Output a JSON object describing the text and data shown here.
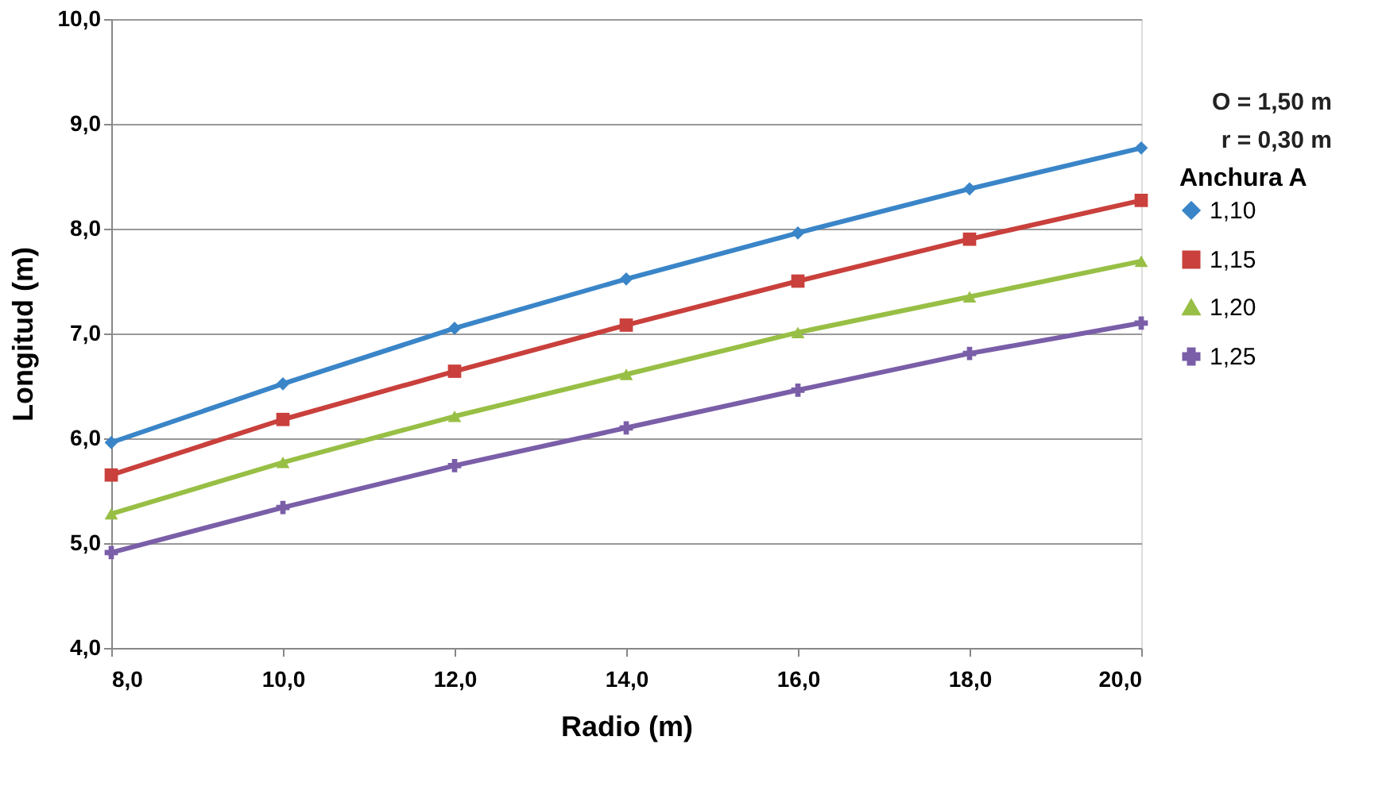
{
  "chart_data": {
    "type": "line",
    "xlabel": "Radio (m)",
    "ylabel": "Longitud (m)",
    "legend_title": "Anchura A",
    "annotations": [
      "O = 1,50 m",
      "r = 0,30 m"
    ],
    "x": [
      8,
      10,
      12,
      14,
      16,
      18,
      20
    ],
    "xlim": [
      8,
      20
    ],
    "xticks": [
      {
        "value": 8,
        "label": "8,0"
      },
      {
        "value": 10,
        "label": "10,0"
      },
      {
        "value": 12,
        "label": "12,0"
      },
      {
        "value": 14,
        "label": "14,0"
      },
      {
        "value": 16,
        "label": "16,0"
      },
      {
        "value": 18,
        "label": "18,0"
      },
      {
        "value": 20,
        "label": "20,0"
      }
    ],
    "ylim": [
      4,
      10
    ],
    "yticks": [
      {
        "value": 4,
        "label": "4,0"
      },
      {
        "value": 5,
        "label": "5,0"
      },
      {
        "value": 6,
        "label": "6,0"
      },
      {
        "value": 7,
        "label": "7,0"
      },
      {
        "value": 8,
        "label": "8,0"
      },
      {
        "value": 9,
        "label": "9,0"
      },
      {
        "value": 10,
        "label": "10,0"
      }
    ],
    "grid": "y",
    "legend": "right",
    "line_style": "solid",
    "series": [
      {
        "name": "1,10",
        "color": "#3a85c8",
        "marker": "diamond",
        "values": [
          5.96,
          6.52,
          7.05,
          7.52,
          7.96,
          8.38,
          8.77
        ]
      },
      {
        "name": "1,15",
        "color": "#c9403c",
        "marker": "square",
        "values": [
          5.65,
          6.18,
          6.64,
          7.08,
          7.5,
          7.9,
          8.27
        ]
      },
      {
        "name": "1,20",
        "color": "#98bf45",
        "marker": "triangle",
        "values": [
          5.28,
          5.77,
          6.21,
          6.61,
          7.01,
          7.35,
          7.69
        ]
      },
      {
        "name": "1,25",
        "color": "#7a5ea8",
        "marker": "cross",
        "values": [
          4.91,
          5.34,
          5.74,
          6.1,
          6.46,
          6.81,
          7.1
        ]
      }
    ]
  }
}
